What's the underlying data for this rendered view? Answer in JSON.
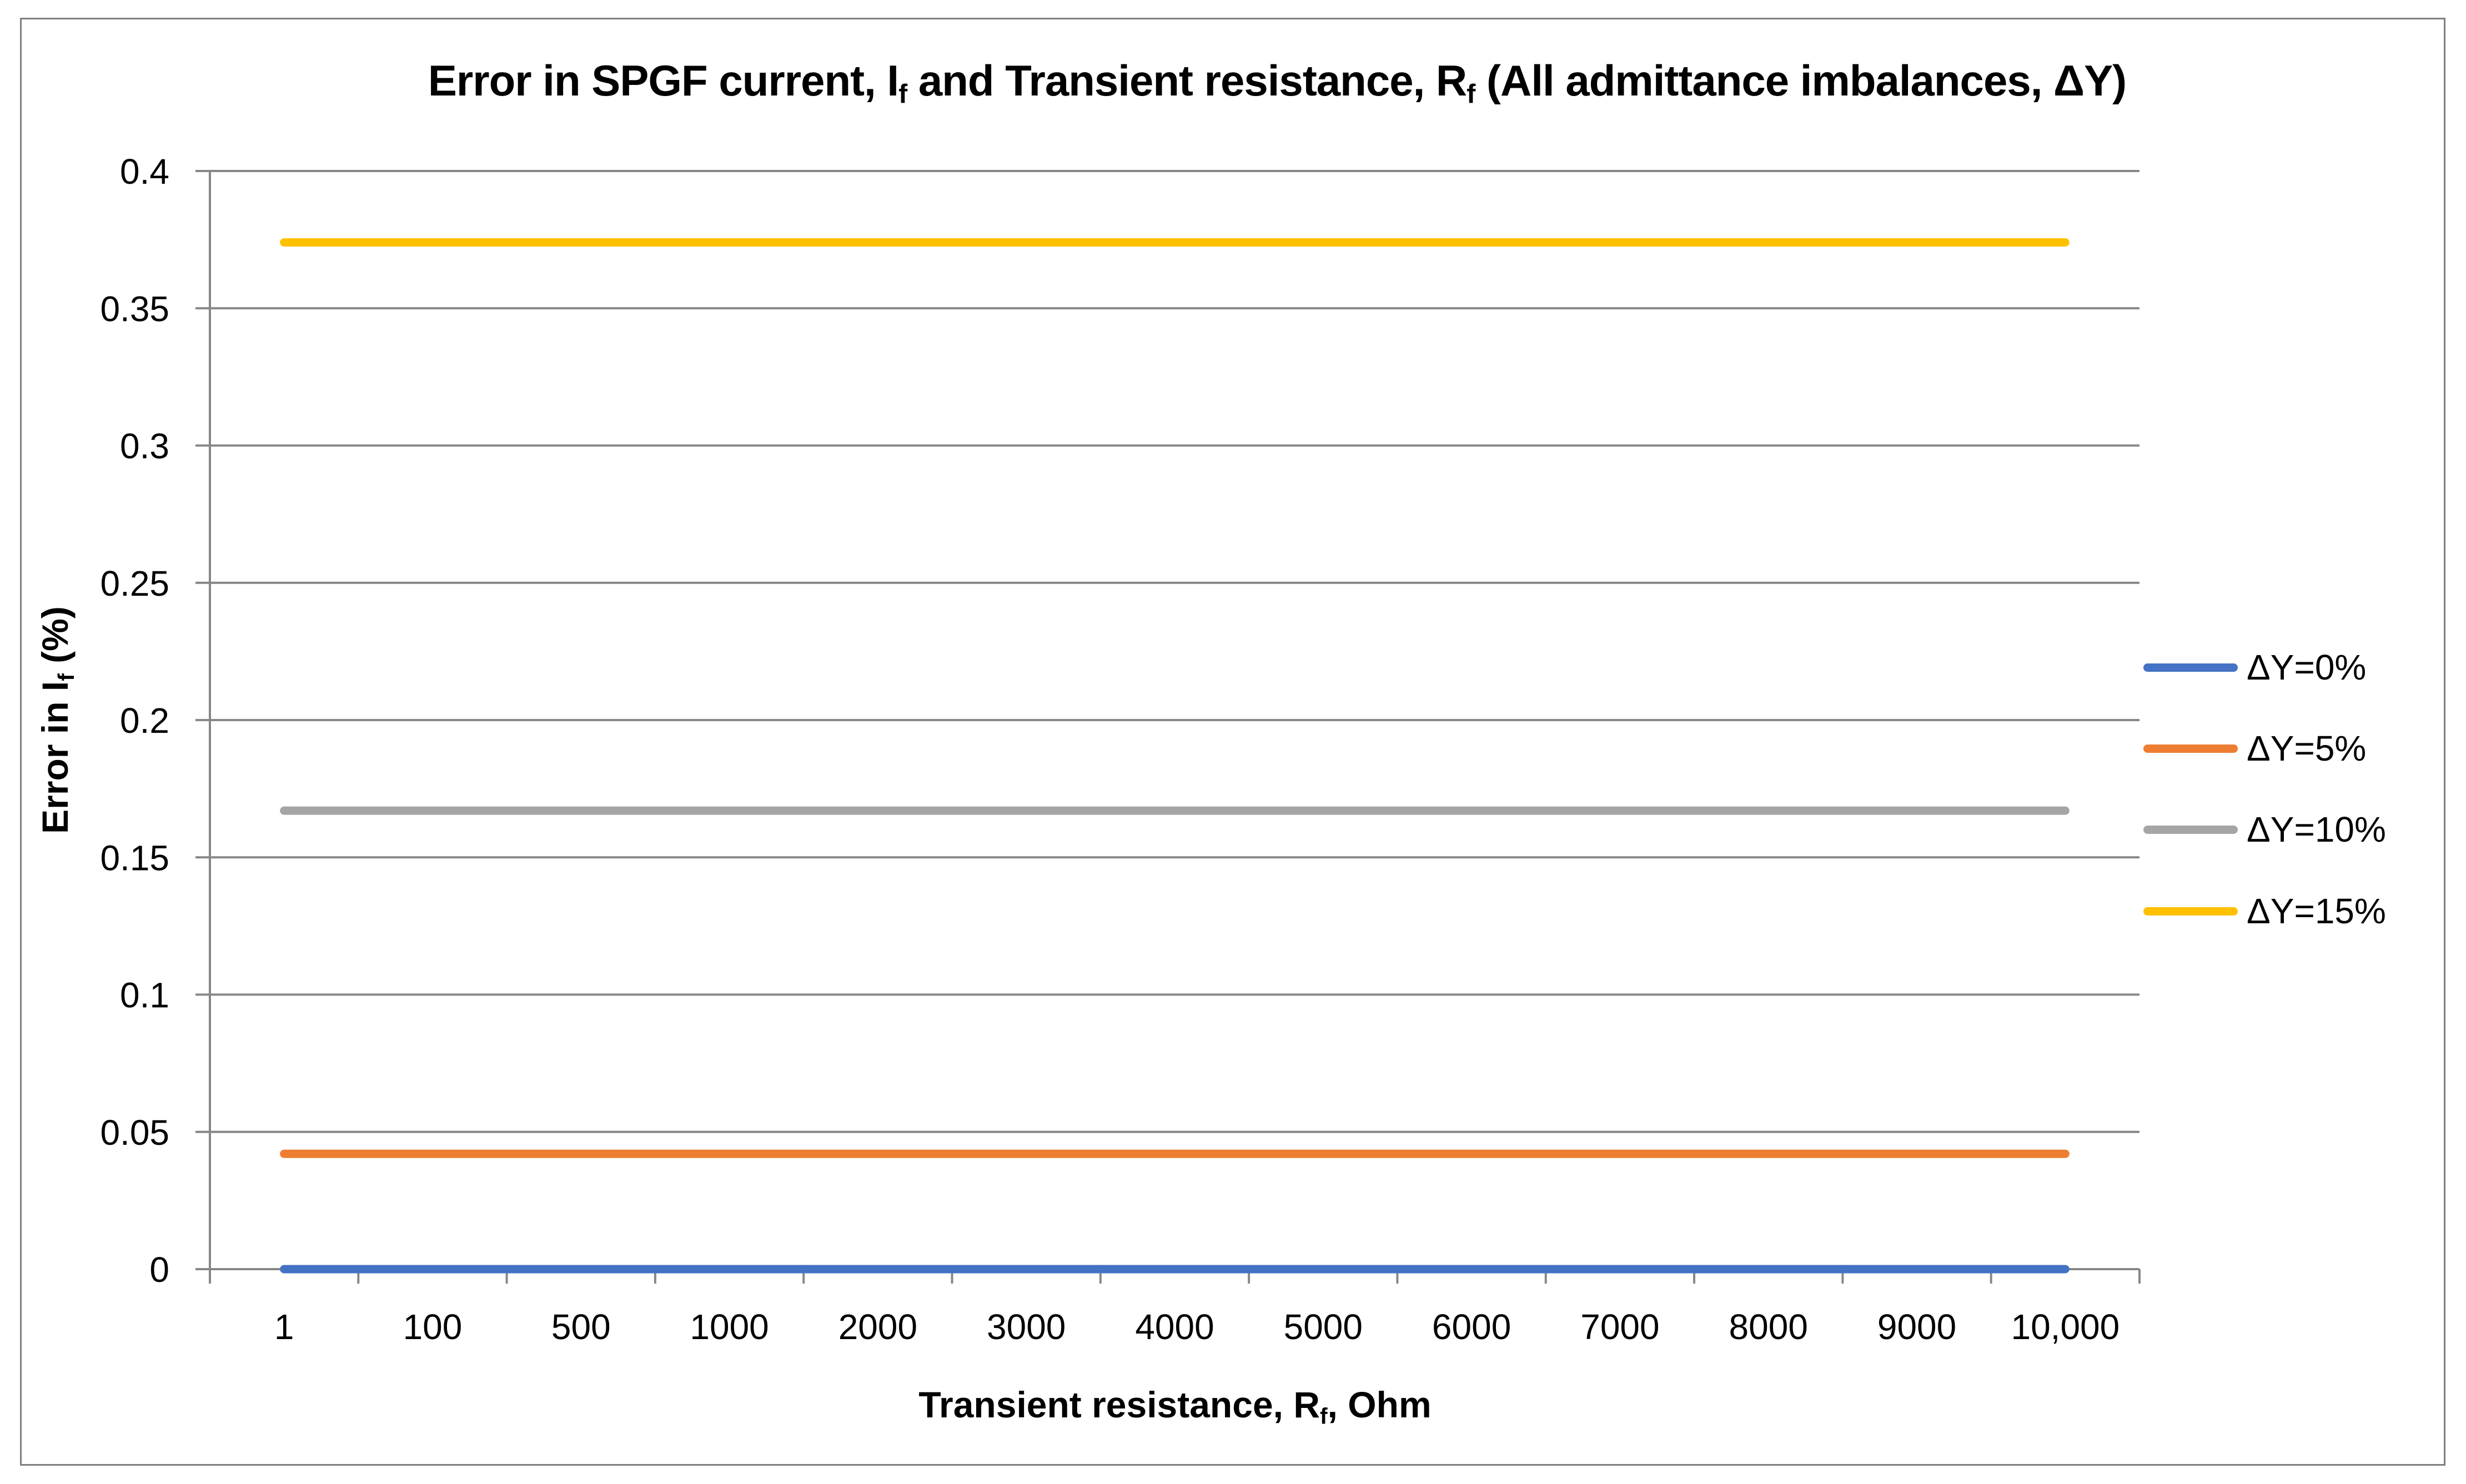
{
  "labels": {
    "title_parts": [
      "Error in SPGF current, I",
      "f",
      " and Transient resistance, R",
      "f",
      " (All admittance imbalances, ΔY)"
    ],
    "xlabel_parts": [
      "Transient resistance, R",
      "f",
      ", Ohm"
    ],
    "ylabel_parts": [
      "Error in I",
      "f",
      " (%)"
    ]
  },
  "chart_data": {
    "type": "line",
    "title": "Error in SPGF current, If and Transient resistance, Rf (All admittance imbalances, ΔY)",
    "xlabel": "Transient resistance, Rf, Ohm",
    "ylabel": "Error in If (%)",
    "categories": [
      "1",
      "100",
      "500",
      "1000",
      "2000",
      "3000",
      "4000",
      "5000",
      "6000",
      "7000",
      "8000",
      "9000",
      "10,000"
    ],
    "series": [
      {
        "name": "ΔY=0%",
        "color": "#4472C4",
        "values": [
          0,
          0,
          0,
          0,
          0,
          0,
          0,
          0,
          0,
          0,
          0,
          0,
          0
        ]
      },
      {
        "name": "ΔY=5%",
        "color": "#ED7D31",
        "values": [
          0.042,
          0.042,
          0.042,
          0.042,
          0.042,
          0.042,
          0.042,
          0.042,
          0.042,
          0.042,
          0.042,
          0.042,
          0.042
        ]
      },
      {
        "name": "ΔY=10%",
        "color": "#A5A5A5",
        "values": [
          0.167,
          0.167,
          0.167,
          0.167,
          0.167,
          0.167,
          0.167,
          0.167,
          0.167,
          0.167,
          0.167,
          0.167,
          0.167
        ]
      },
      {
        "name": "ΔY=15%",
        "color": "#FFC000",
        "values": [
          0.374,
          0.374,
          0.374,
          0.374,
          0.374,
          0.374,
          0.374,
          0.374,
          0.374,
          0.374,
          0.374,
          0.374,
          0.374
        ]
      }
    ],
    "ylim": [
      0,
      0.4
    ],
    "yticks": [
      0,
      0.05,
      0.1,
      0.15,
      0.2,
      0.25,
      0.3,
      0.35,
      0.4
    ],
    "ytick_labels": [
      "0",
      "0.05",
      "0.1",
      "0.15",
      "0.2",
      "0.25",
      "0.3",
      "0.35",
      "0.4"
    ],
    "grid": true,
    "legend_position": "right"
  },
  "style": {
    "axis_color": "#878787",
    "gridline_color": "#878787",
    "border_color": "#7f7f7f",
    "text_color": "#000000"
  }
}
